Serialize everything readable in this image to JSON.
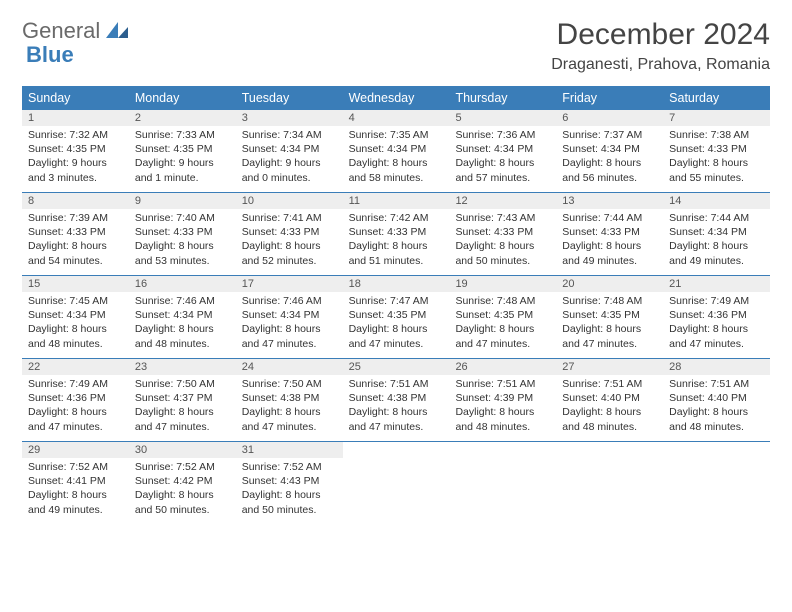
{
  "logo": {
    "text1": "General",
    "text2": "Blue"
  },
  "title": "December 2024",
  "location": "Draganesti, Prahova, Romania",
  "colors": {
    "header_bg": "#3a7db8",
    "header_text": "#ffffff",
    "daynum_bg": "#eeeeee",
    "border": "#3a7db8",
    "body_bg": "#ffffff",
    "text": "#333333"
  },
  "day_names": [
    "Sunday",
    "Monday",
    "Tuesday",
    "Wednesday",
    "Thursday",
    "Friday",
    "Saturday"
  ],
  "weeks": [
    [
      {
        "n": "1",
        "sr": "Sunrise: 7:32 AM",
        "ss": "Sunset: 4:35 PM",
        "d1": "Daylight: 9 hours",
        "d2": "and 3 minutes."
      },
      {
        "n": "2",
        "sr": "Sunrise: 7:33 AM",
        "ss": "Sunset: 4:35 PM",
        "d1": "Daylight: 9 hours",
        "d2": "and 1 minute."
      },
      {
        "n": "3",
        "sr": "Sunrise: 7:34 AM",
        "ss": "Sunset: 4:34 PM",
        "d1": "Daylight: 9 hours",
        "d2": "and 0 minutes."
      },
      {
        "n": "4",
        "sr": "Sunrise: 7:35 AM",
        "ss": "Sunset: 4:34 PM",
        "d1": "Daylight: 8 hours",
        "d2": "and 58 minutes."
      },
      {
        "n": "5",
        "sr": "Sunrise: 7:36 AM",
        "ss": "Sunset: 4:34 PM",
        "d1": "Daylight: 8 hours",
        "d2": "and 57 minutes."
      },
      {
        "n": "6",
        "sr": "Sunrise: 7:37 AM",
        "ss": "Sunset: 4:34 PM",
        "d1": "Daylight: 8 hours",
        "d2": "and 56 minutes."
      },
      {
        "n": "7",
        "sr": "Sunrise: 7:38 AM",
        "ss": "Sunset: 4:33 PM",
        "d1": "Daylight: 8 hours",
        "d2": "and 55 minutes."
      }
    ],
    [
      {
        "n": "8",
        "sr": "Sunrise: 7:39 AM",
        "ss": "Sunset: 4:33 PM",
        "d1": "Daylight: 8 hours",
        "d2": "and 54 minutes."
      },
      {
        "n": "9",
        "sr": "Sunrise: 7:40 AM",
        "ss": "Sunset: 4:33 PM",
        "d1": "Daylight: 8 hours",
        "d2": "and 53 minutes."
      },
      {
        "n": "10",
        "sr": "Sunrise: 7:41 AM",
        "ss": "Sunset: 4:33 PM",
        "d1": "Daylight: 8 hours",
        "d2": "and 52 minutes."
      },
      {
        "n": "11",
        "sr": "Sunrise: 7:42 AM",
        "ss": "Sunset: 4:33 PM",
        "d1": "Daylight: 8 hours",
        "d2": "and 51 minutes."
      },
      {
        "n": "12",
        "sr": "Sunrise: 7:43 AM",
        "ss": "Sunset: 4:33 PM",
        "d1": "Daylight: 8 hours",
        "d2": "and 50 minutes."
      },
      {
        "n": "13",
        "sr": "Sunrise: 7:44 AM",
        "ss": "Sunset: 4:33 PM",
        "d1": "Daylight: 8 hours",
        "d2": "and 49 minutes."
      },
      {
        "n": "14",
        "sr": "Sunrise: 7:44 AM",
        "ss": "Sunset: 4:34 PM",
        "d1": "Daylight: 8 hours",
        "d2": "and 49 minutes."
      }
    ],
    [
      {
        "n": "15",
        "sr": "Sunrise: 7:45 AM",
        "ss": "Sunset: 4:34 PM",
        "d1": "Daylight: 8 hours",
        "d2": "and 48 minutes."
      },
      {
        "n": "16",
        "sr": "Sunrise: 7:46 AM",
        "ss": "Sunset: 4:34 PM",
        "d1": "Daylight: 8 hours",
        "d2": "and 48 minutes."
      },
      {
        "n": "17",
        "sr": "Sunrise: 7:46 AM",
        "ss": "Sunset: 4:34 PM",
        "d1": "Daylight: 8 hours",
        "d2": "and 47 minutes."
      },
      {
        "n": "18",
        "sr": "Sunrise: 7:47 AM",
        "ss": "Sunset: 4:35 PM",
        "d1": "Daylight: 8 hours",
        "d2": "and 47 minutes."
      },
      {
        "n": "19",
        "sr": "Sunrise: 7:48 AM",
        "ss": "Sunset: 4:35 PM",
        "d1": "Daylight: 8 hours",
        "d2": "and 47 minutes."
      },
      {
        "n": "20",
        "sr": "Sunrise: 7:48 AM",
        "ss": "Sunset: 4:35 PM",
        "d1": "Daylight: 8 hours",
        "d2": "and 47 minutes."
      },
      {
        "n": "21",
        "sr": "Sunrise: 7:49 AM",
        "ss": "Sunset: 4:36 PM",
        "d1": "Daylight: 8 hours",
        "d2": "and 47 minutes."
      }
    ],
    [
      {
        "n": "22",
        "sr": "Sunrise: 7:49 AM",
        "ss": "Sunset: 4:36 PM",
        "d1": "Daylight: 8 hours",
        "d2": "and 47 minutes."
      },
      {
        "n": "23",
        "sr": "Sunrise: 7:50 AM",
        "ss": "Sunset: 4:37 PM",
        "d1": "Daylight: 8 hours",
        "d2": "and 47 minutes."
      },
      {
        "n": "24",
        "sr": "Sunrise: 7:50 AM",
        "ss": "Sunset: 4:38 PM",
        "d1": "Daylight: 8 hours",
        "d2": "and 47 minutes."
      },
      {
        "n": "25",
        "sr": "Sunrise: 7:51 AM",
        "ss": "Sunset: 4:38 PM",
        "d1": "Daylight: 8 hours",
        "d2": "and 47 minutes."
      },
      {
        "n": "26",
        "sr": "Sunrise: 7:51 AM",
        "ss": "Sunset: 4:39 PM",
        "d1": "Daylight: 8 hours",
        "d2": "and 48 minutes."
      },
      {
        "n": "27",
        "sr": "Sunrise: 7:51 AM",
        "ss": "Sunset: 4:40 PM",
        "d1": "Daylight: 8 hours",
        "d2": "and 48 minutes."
      },
      {
        "n": "28",
        "sr": "Sunrise: 7:51 AM",
        "ss": "Sunset: 4:40 PM",
        "d1": "Daylight: 8 hours",
        "d2": "and 48 minutes."
      }
    ],
    [
      {
        "n": "29",
        "sr": "Sunrise: 7:52 AM",
        "ss": "Sunset: 4:41 PM",
        "d1": "Daylight: 8 hours",
        "d2": "and 49 minutes."
      },
      {
        "n": "30",
        "sr": "Sunrise: 7:52 AM",
        "ss": "Sunset: 4:42 PM",
        "d1": "Daylight: 8 hours",
        "d2": "and 50 minutes."
      },
      {
        "n": "31",
        "sr": "Sunrise: 7:52 AM",
        "ss": "Sunset: 4:43 PM",
        "d1": "Daylight: 8 hours",
        "d2": "and 50 minutes."
      },
      {
        "empty": true
      },
      {
        "empty": true
      },
      {
        "empty": true
      },
      {
        "empty": true
      }
    ]
  ]
}
